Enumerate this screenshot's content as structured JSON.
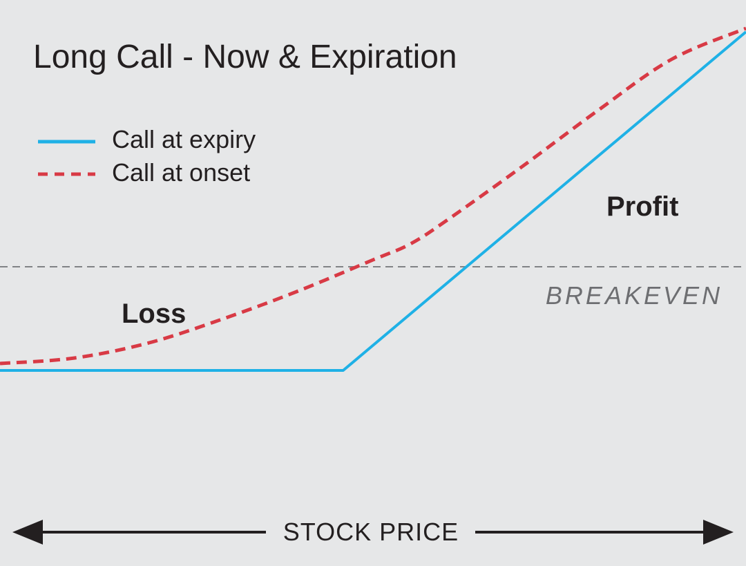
{
  "chart_data": {
    "type": "line",
    "title": "Long Call - Now & Expiration",
    "xlabel": "STOCK PRICE",
    "ylabel": "",
    "xlim": [
      0,
      100
    ],
    "ylim": [
      -25,
      55
    ],
    "grid": false,
    "legend_position": "top-left",
    "breakeven": {
      "label": "BREAKEVEN",
      "y": 0
    },
    "region_labels": {
      "loss": "Loss",
      "profit": "Profit"
    },
    "series": [
      {
        "name": "Call at expiry",
        "style": "solid",
        "color": "#1fb1e6",
        "x": [
          0,
          46,
          100
        ],
        "y": [
          -15,
          -15,
          34
        ]
      },
      {
        "name": "Call at onset",
        "style": "dashed",
        "color": "#d83a45",
        "x": [
          0,
          10,
          20,
          30,
          40,
          50,
          55,
          60,
          70,
          80,
          90,
          100
        ],
        "y": [
          -14,
          -13.2,
          -11,
          -7.5,
          -3.5,
          1,
          3.3,
          6.8,
          14.5,
          22.5,
          30,
          34.5
        ]
      }
    ]
  },
  "colors": {
    "background": "#e6e7e8",
    "text": "#231f20",
    "breakeven_line": "#808285",
    "breakeven_text": "#6d6e71"
  }
}
